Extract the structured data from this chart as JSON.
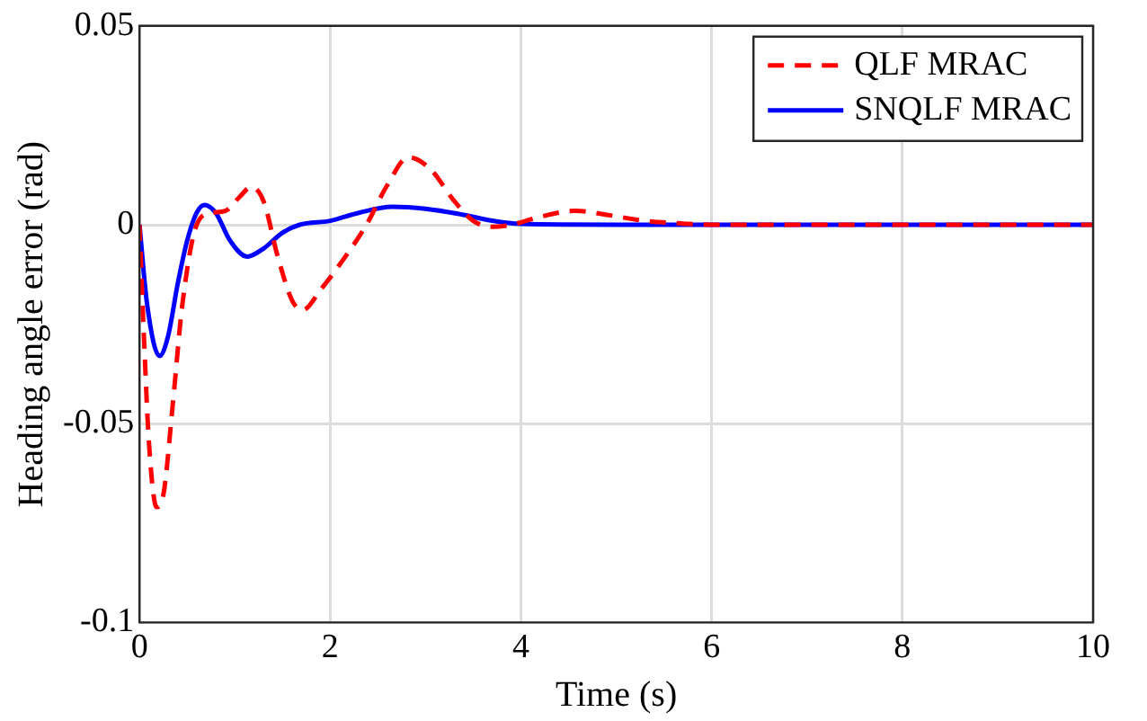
{
  "chart_data": {
    "type": "line",
    "xlabel": "Time (s)",
    "ylabel": "Heading angle error (rad)",
    "xlim": [
      0,
      10
    ],
    "xticks": [
      0,
      2,
      4,
      6,
      8,
      10
    ],
    "ylim": [
      -0.1,
      0.05
    ],
    "yticks": [
      -0.1,
      -0.05,
      0,
      0.05
    ],
    "grid": true,
    "legend": "top right",
    "marker": "none",
    "series": [
      {
        "name": "QLF MRAC",
        "color": "#ff0000",
        "line_style": "dashed",
        "x": [
          0,
          0.05,
          0.1,
          0.18,
          0.25,
          0.35,
          0.45,
          0.6,
          0.75,
          0.9,
          1.05,
          1.17,
          1.3,
          1.45,
          1.6,
          1.71,
          1.91,
          2.1,
          2.38,
          2.6,
          2.82,
          3.05,
          3.3,
          3.5,
          3.7,
          3.9,
          4.2,
          4.57,
          4.9,
          5.3,
          5.7,
          6,
          7,
          8,
          9,
          10
        ],
        "values": [
          0,
          -0.03,
          -0.055,
          -0.071,
          -0.068,
          -0.045,
          -0.02,
          0,
          0.003,
          0.0035,
          0.007,
          0.0095,
          0.006,
          -0.008,
          -0.019,
          -0.0215,
          -0.016,
          -0.01,
          0,
          0.01,
          0.017,
          0.014,
          0.006,
          0.001,
          -0.0005,
          0,
          0.002,
          0.0035,
          0.0025,
          0.001,
          0.0003,
          0,
          0,
          0,
          0,
          0
        ]
      },
      {
        "name": "SNQLF MRAC",
        "color": "#0000ff",
        "line_style": "solid",
        "x": [
          0,
          0.08,
          0.21,
          0.3,
          0.4,
          0.5,
          0.6,
          0.68,
          0.8,
          0.95,
          1.13,
          1.3,
          1.5,
          1.68,
          2,
          2.3,
          2.65,
          3,
          3.4,
          3.7,
          4,
          5,
          6,
          8,
          10
        ],
        "values": [
          0,
          -0.02,
          -0.033,
          -0.028,
          -0.015,
          -0.004,
          0.003,
          0.005,
          0.003,
          -0.004,
          -0.008,
          -0.006,
          -0.002,
          0,
          0.001,
          0.003,
          0.0045,
          0.004,
          0.0025,
          0.001,
          0.0002,
          0,
          0,
          0,
          0
        ]
      }
    ]
  }
}
